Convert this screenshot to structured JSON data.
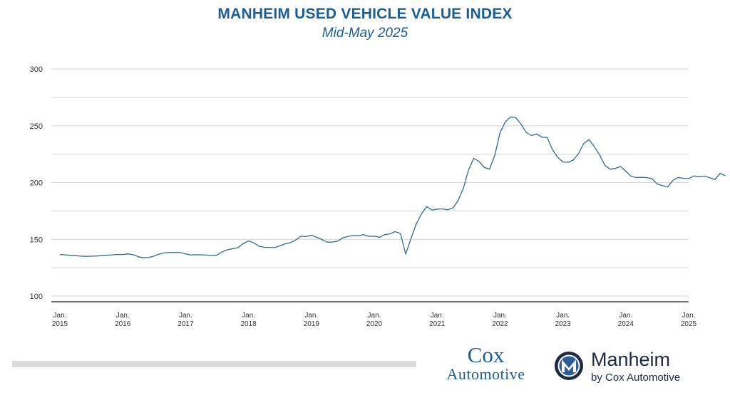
{
  "header": {
    "title": "MANHEIM USED VEHICLE VALUE INDEX",
    "subtitle": "Mid-May 2025"
  },
  "chart_data": {
    "type": "line",
    "title": "MANHEIM USED VEHICLE VALUE INDEX",
    "subtitle": "Mid-May 2025",
    "xlabel": "",
    "ylabel": "",
    "ylim": [
      95,
      300
    ],
    "yticks": [
      "300",
      "250",
      "200",
      "150",
      "100"
    ],
    "xticks": [
      {
        "month": "Jan.",
        "year": "2015"
      },
      {
        "month": "Jan.",
        "year": "2016"
      },
      {
        "month": "Jan.",
        "year": "2017"
      },
      {
        "month": "Jan.",
        "year": "2018"
      },
      {
        "month": "Jan.",
        "year": "2019"
      },
      {
        "month": "Jan.",
        "year": "2020"
      },
      {
        "month": "Jan.",
        "year": "2021"
      },
      {
        "month": "Jan.",
        "year": "2022"
      },
      {
        "month": "Jan.",
        "year": "2023"
      },
      {
        "month": "Jan.",
        "year": "2024"
      },
      {
        "month": "Jan.",
        "year": "2025"
      }
    ],
    "grid": true,
    "line_color": "#2e6d8e",
    "end_label": "205.9",
    "series": [
      {
        "start": "2015-01",
        "values": [
          136.6,
          136.3,
          135.9,
          135.6,
          135.2,
          135.0,
          135.1,
          135.3,
          135.6,
          136.0,
          136.3,
          136.7,
          136.6,
          137.1,
          136.4,
          134.6,
          133.7,
          134.1,
          135.3,
          137.0,
          138.2,
          138.4,
          138.5,
          138.3,
          137.2,
          136.2,
          136.4,
          136.3,
          136.1,
          135.7,
          136.2,
          139.0,
          140.8,
          141.7,
          142.7,
          146.4,
          148.6,
          146.9,
          143.9,
          143.0,
          142.9,
          142.7,
          144.3,
          146.0,
          147.1,
          149.4,
          152.7,
          152.4,
          153.6,
          151.8,
          149.9,
          147.5,
          147.6,
          148.4,
          151.3,
          152.6,
          153.3,
          153.2,
          154.1,
          152.6,
          152.8,
          151.7,
          154.2,
          154.8,
          156.8,
          155.0,
          136.9,
          150.8,
          163.4,
          172.5,
          178.8,
          175.8,
          176.6,
          176.8,
          175.9,
          177.6,
          184.2,
          195.0,
          211.3,
          221.3,
          218.6,
          213.2,
          211.9,
          224.1,
          244.0,
          253.4,
          257.8,
          257.3,
          251.5,
          244.1,
          241.4,
          242.9,
          240.0,
          239.7,
          228.9,
          222.3,
          218.1,
          217.8,
          219.9,
          225.7,
          234.5,
          237.8,
          231.5,
          224.3,
          215.2,
          211.8,
          212.4,
          214.2,
          210.0,
          205.5,
          204.4,
          204.6,
          204.4,
          203.4,
          198.7,
          197.3,
          196.1,
          202.0,
          204.5,
          203.7,
          203.5,
          205.8,
          205.1,
          205.7,
          204.3,
          202.6,
          208.1,
          205.9
        ]
      }
    ]
  },
  "footer": {
    "cox_line1": "Cox",
    "cox_line2": "Automotive",
    "manheim_name": "Manheim",
    "manheim_by": "by Cox Automotive"
  }
}
